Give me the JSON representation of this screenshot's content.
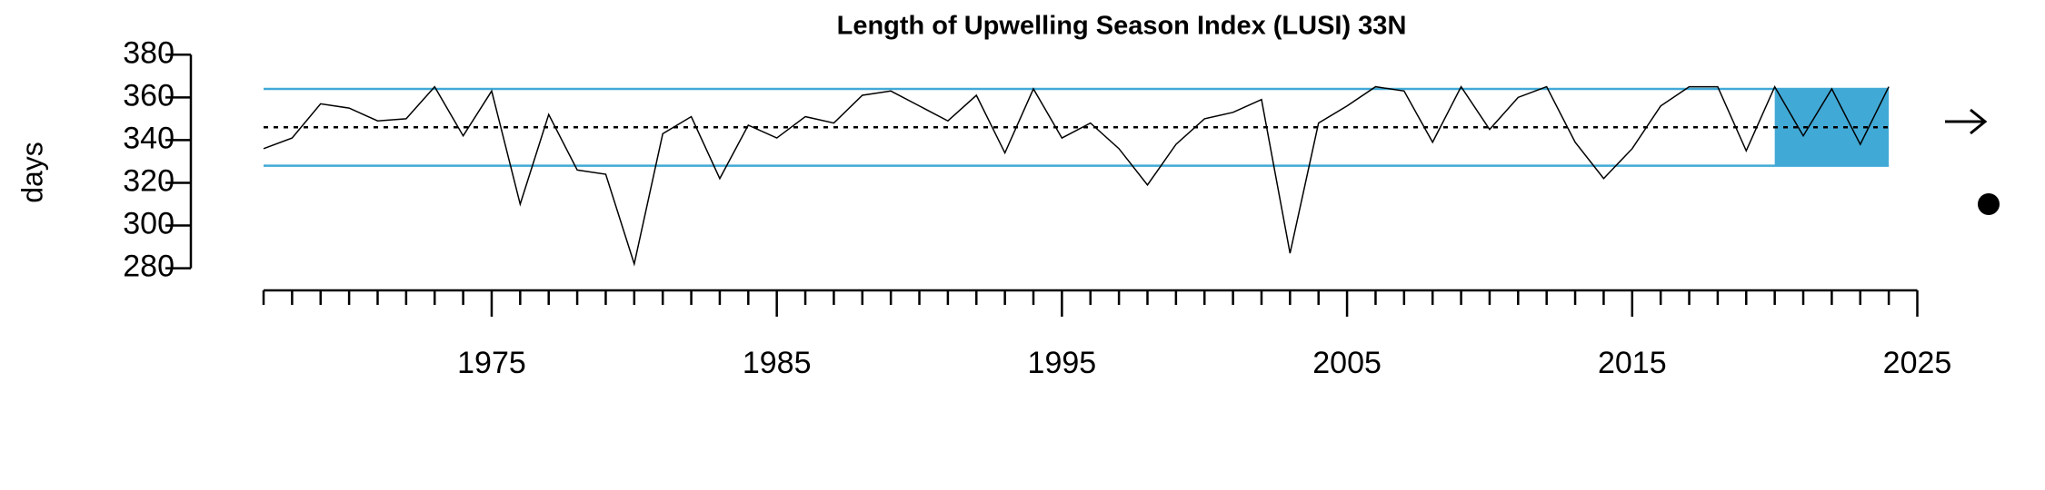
{
  "chart_data": {
    "type": "line",
    "title": "Length of Upwelling Season Index (LUSI) 33N",
    "y_label": "days",
    "x": [
      1967,
      1968,
      1969,
      1970,
      1971,
      1972,
      1973,
      1974,
      1975,
      1976,
      1977,
      1978,
      1979,
      1980,
      1981,
      1982,
      1983,
      1984,
      1985,
      1986,
      1987,
      1988,
      1989,
      1990,
      1991,
      1992,
      1993,
      1994,
      1995,
      1996,
      1997,
      1998,
      1999,
      2000,
      2001,
      2002,
      2003,
      2004,
      2005,
      2006,
      2007,
      2008,
      2009,
      2010,
      2011,
      2012,
      2013,
      2014,
      2015,
      2016,
      2017,
      2018,
      2019,
      2020,
      2021,
      2022,
      2023,
      2024
    ],
    "series": [
      {
        "name": "LUSI",
        "color": "#000000",
        "values": [
          336,
          341,
          357,
          355,
          349,
          350,
          365,
          342,
          363,
          310,
          352,
          326,
          324,
          282,
          343,
          351,
          322,
          347,
          341,
          351,
          348,
          361,
          363,
          356,
          349,
          361,
          334,
          364,
          341,
          348,
          336,
          319,
          338,
          350,
          353,
          359,
          287,
          348,
          356,
          365,
          363,
          339,
          365,
          345,
          360,
          365,
          339,
          322,
          336,
          356,
          365,
          365,
          335,
          365,
          342,
          364,
          338,
          365
        ]
      }
    ],
    "mean": 346,
    "upper": 364,
    "lower": 328,
    "ref_color": "#41a9d6",
    "shade_x": [
      2020,
      2024
    ],
    "shade_color": "#41a9d6",
    "xlim": [
      1967,
      2025
    ],
    "xticks": [
      1975,
      1985,
      1995,
      2005,
      2015,
      2025
    ],
    "xminorticks": [
      1967,
      1968,
      1969,
      1970,
      1971,
      1972,
      1973,
      1974,
      1976,
      1977,
      1978,
      1979,
      1980,
      1981,
      1982,
      1983,
      1984,
      1986,
      1987,
      1988,
      1989,
      1990,
      1991,
      1992,
      1993,
      1994,
      1996,
      1997,
      1998,
      1999,
      2000,
      2001,
      2002,
      2003,
      2004,
      2006,
      2007,
      2008,
      2009,
      2010,
      2011,
      2012,
      2013,
      2014,
      2016,
      2017,
      2018,
      2019,
      2020,
      2021,
      2022,
      2023,
      2024
    ],
    "ylim": [
      270,
      380
    ],
    "yticks": [
      280,
      300,
      320,
      340,
      360,
      380
    ]
  }
}
